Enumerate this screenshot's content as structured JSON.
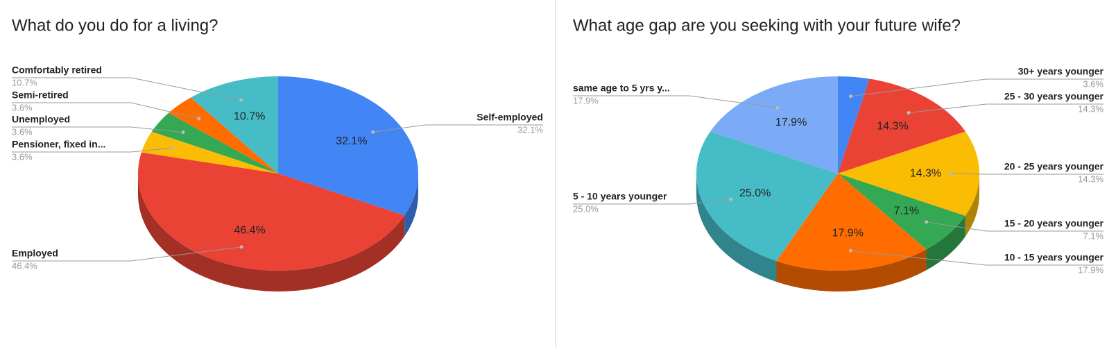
{
  "chart_data": [
    {
      "type": "pie3d",
      "title": "What do you do for a living?",
      "categories": [
        "Self-employed",
        "Employed",
        "Pensioner, fixed in...",
        "Unemployed",
        "Semi-retired",
        "Comfortably retired"
      ],
      "values": [
        32.1,
        46.4,
        3.6,
        3.6,
        3.6,
        10.7
      ],
      "value_labels": [
        "32.1%",
        "46.4%",
        "3.6%",
        "3.6%",
        "3.6%",
        "10.7%"
      ],
      "colors": [
        "#4285f4",
        "#ea4335",
        "#fbbc04",
        "#34a853",
        "#ff6d01",
        "#46bdc6"
      ]
    },
    {
      "type": "pie3d",
      "title": "What age gap are you seeking with your future wife?",
      "categories": [
        "30+ years younger",
        "25 - 30 years younger",
        "20 - 25 years younger",
        "15 - 20 years younger",
        "10 - 15 years younger",
        "5 - 10 years younger",
        "same age to 5 yrs y..."
      ],
      "values": [
        3.6,
        14.3,
        14.3,
        7.1,
        17.9,
        25,
        17.9
      ],
      "value_labels": [
        "3.6%",
        "14.3%",
        "14.3%",
        "7.1%",
        "17.9%",
        "25.0%",
        "17.9%"
      ],
      "colors": [
        "#4285f4",
        "#ea4335",
        "#fbbc04",
        "#34a853",
        "#ff6d01",
        "#46bdc6",
        "#7baaf7"
      ]
    }
  ]
}
